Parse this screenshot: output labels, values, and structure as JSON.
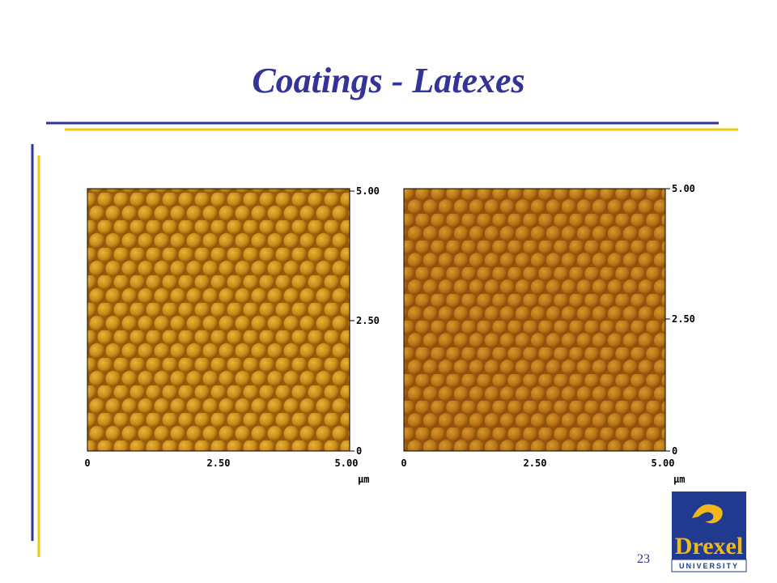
{
  "header": {
    "title": "Coatings - Latexes"
  },
  "images": [
    {
      "yticks": [
        "5.00",
        "2.50",
        "0"
      ],
      "xticks": [
        "0",
        "2.50",
        "5.00"
      ],
      "unit": "μm"
    },
    {
      "yticks": [
        "5.00",
        "2.50",
        "0"
      ],
      "xticks": [
        "0",
        "2.50",
        "5.00"
      ],
      "unit": "μm"
    }
  ],
  "logo": {
    "name": "Drexel",
    "subtitle": "UNIVERSITY"
  },
  "footer": {
    "page_number": "23"
  }
}
